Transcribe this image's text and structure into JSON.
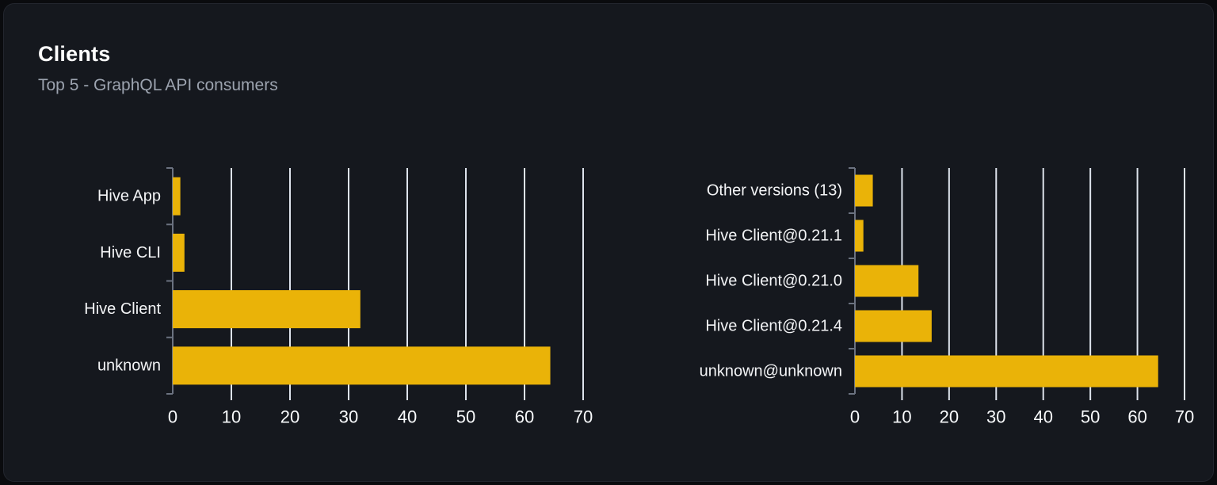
{
  "header": {
    "title": "Clients",
    "subtitle": "Top 5 - GraphQL API consumers"
  },
  "colors": {
    "page_bg": "#0a0b0e",
    "card_bg": "#15181e",
    "card_border": "#23262e",
    "title": "#ffffff",
    "subtitle": "#9ca3af",
    "bar": "#eab308",
    "gridline": "#dde3ec",
    "axis": "#6b7280",
    "category_label": "#f3f4f6",
    "tick_label": "#f8fafc"
  },
  "chart_data": [
    {
      "type": "bar",
      "name": "clients",
      "orientation": "horizontal",
      "title": "",
      "categories": [
        "Hive App",
        "Hive CLI",
        "Hive Client",
        "unknown"
      ],
      "values": [
        1.3,
        2,
        32,
        64.4
      ],
      "xticks": [
        0,
        10,
        20,
        30,
        40,
        50,
        60,
        70
      ],
      "xlim": [
        0,
        70
      ],
      "xlabel": "",
      "ylabel": "",
      "grid": true,
      "legend": false
    },
    {
      "type": "bar",
      "name": "client-versions",
      "orientation": "horizontal",
      "title": "",
      "categories": [
        "Other versions (13)",
        "Hive Client@0.21.1",
        "Hive Client@0.21.0",
        "Hive Client@0.21.4",
        "unknown@unknown"
      ],
      "values": [
        3.8,
        1.8,
        13.5,
        16.3,
        64.4
      ],
      "xticks": [
        0,
        10,
        20,
        30,
        40,
        50,
        60,
        70
      ],
      "xlim": [
        0,
        70
      ],
      "xlabel": "",
      "ylabel": "",
      "grid": true,
      "legend": false
    }
  ]
}
